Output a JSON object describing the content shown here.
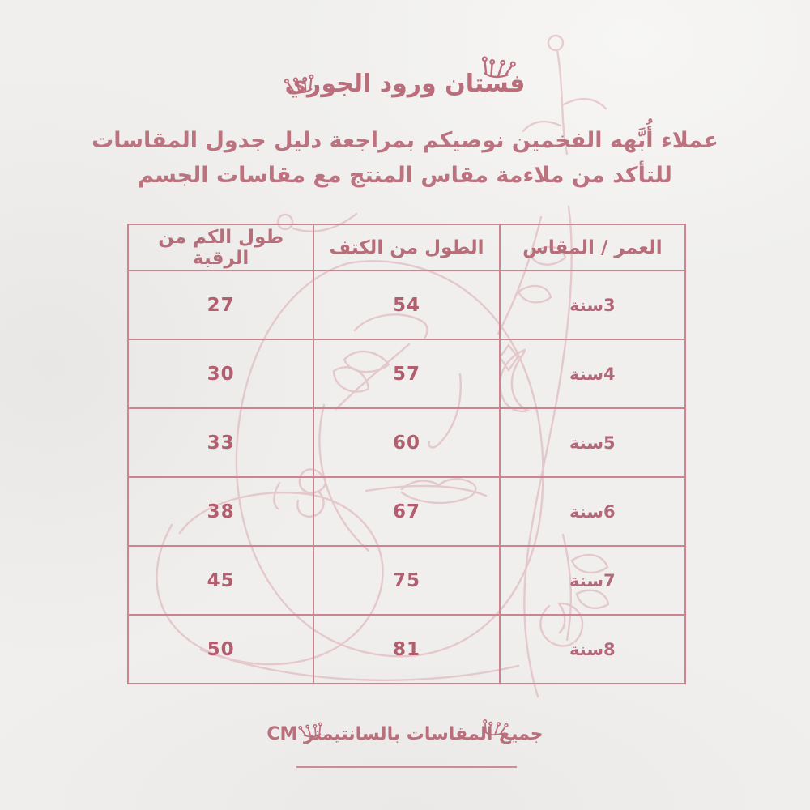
{
  "header": {
    "title": "فستان ورود الجوري"
  },
  "intro": {
    "line1": "عملاء أُبَّهه الفخمين نوصيكم بمراجعة دليل جدول المقاسات",
    "line2": "للتأكد من ملاءمة مقاس المنتج مع مقاسات الجسم"
  },
  "size_table": {
    "columns": [
      "العمر / المقاس",
      "الطول من الكتف",
      "طول الكم من الرقبة"
    ],
    "rows": [
      {
        "age": "3سنة",
        "length_from_shoulder": "54",
        "sleeve_from_neck": "27"
      },
      {
        "age": "4سنة",
        "length_from_shoulder": "57",
        "sleeve_from_neck": "30"
      },
      {
        "age": "5سنة",
        "length_from_shoulder": "60",
        "sleeve_from_neck": "33"
      },
      {
        "age": "6سنة",
        "length_from_shoulder": "67",
        "sleeve_from_neck": "38"
      },
      {
        "age": "7سنة",
        "length_from_shoulder": "75",
        "sleeve_from_neck": "45"
      },
      {
        "age": "8سنة",
        "length_from_shoulder": "81",
        "sleeve_from_neck": "50"
      }
    ]
  },
  "footer": {
    "note": "جميع المقاسات بالسانتيمتر CM"
  },
  "icons": {
    "crowns": [
      "crown-doodle-icon",
      "crown-doodle-icon",
      "crown-doodle-icon",
      "crown-doodle-icon"
    ],
    "background_art": "one-line-face-with-leaves-illustration"
  },
  "colors": {
    "accent_rose": "#bb6d7b",
    "numbers_rose": "#b25e6e",
    "table_border": "#cc8490",
    "illustration_line": "#dcaab1",
    "background": "#f0efed"
  },
  "chart_data": {
    "type": "table",
    "title": "فستان ورود الجوري",
    "columns": [
      "العمر / المقاس",
      "الطول من الكتف",
      "طول الكم من الرقبة"
    ],
    "rows": [
      [
        "3سنة",
        54,
        27
      ],
      [
        "4سنة",
        57,
        30
      ],
      [
        "5سنة",
        60,
        33
      ],
      [
        "6سنة",
        67,
        38
      ],
      [
        "7سنة",
        75,
        45
      ],
      [
        "8سنة",
        81,
        50
      ]
    ],
    "units": "CM",
    "notes": "جميع المقاسات بالسانتيمتر CM"
  }
}
